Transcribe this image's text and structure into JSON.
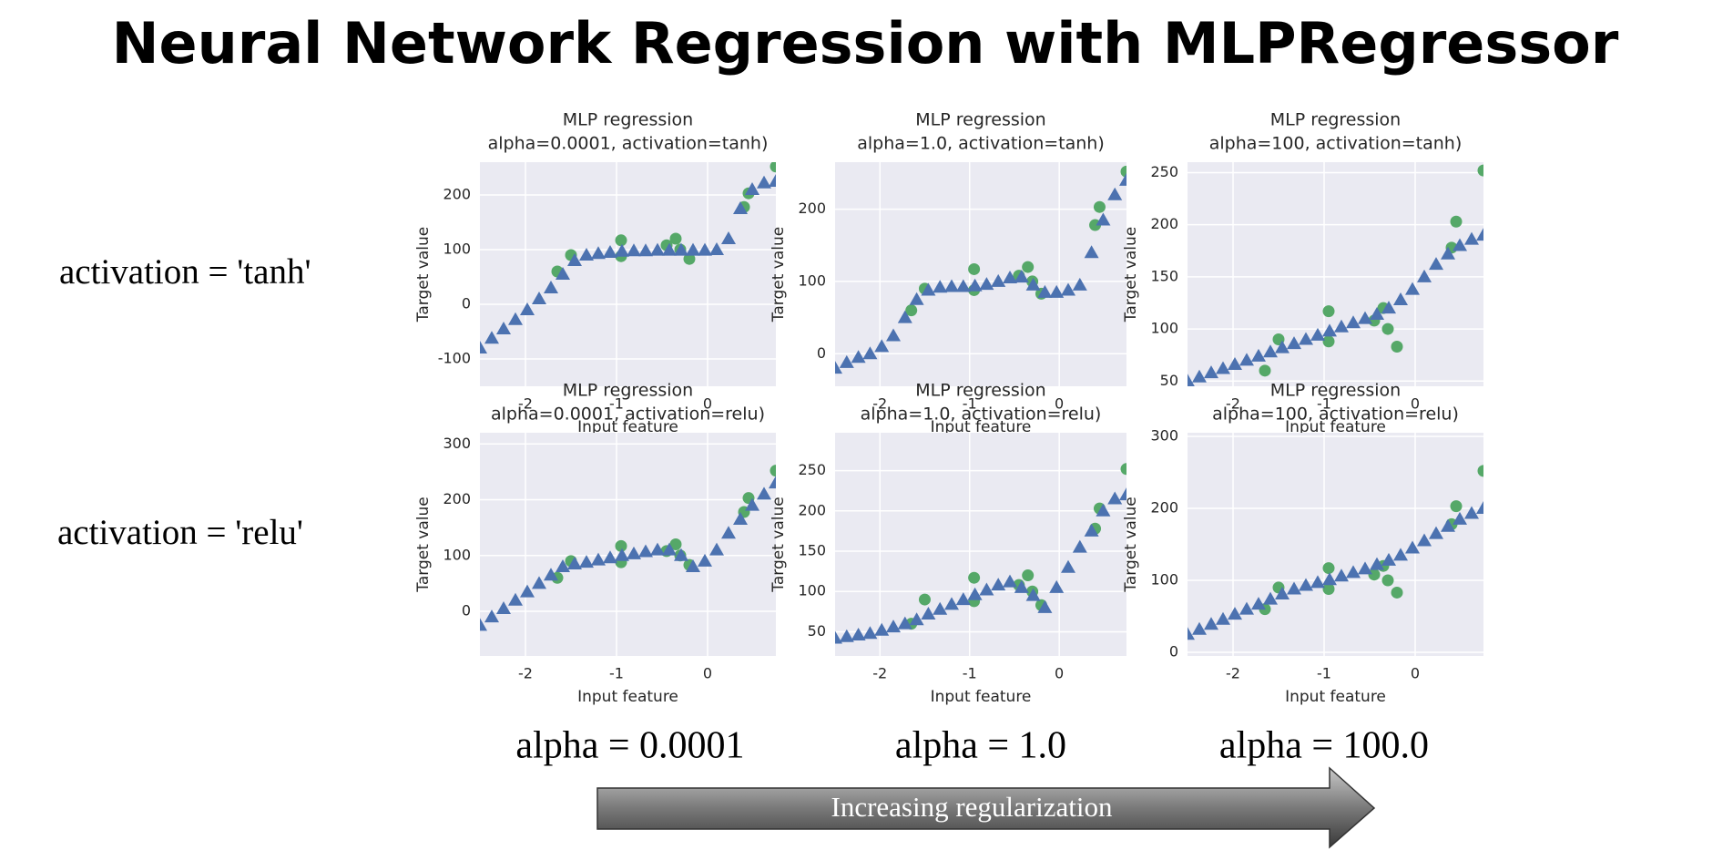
{
  "title": "Neural Network Regression with MLPRegressor",
  "row_labels": [
    "activation = 'tanh'",
    "activation = 'relu'"
  ],
  "col_labels": [
    "alpha = 0.0001",
    "alpha = 1.0",
    "alpha = 100.0"
  ],
  "arrow_label": "Increasing regularization",
  "chart_data": [
    {
      "type": "scatter",
      "title": "MLP regression",
      "subtitle": "alpha=0.0001, activation=tanh)",
      "x_label": "Input feature",
      "y_label": "Target value",
      "xlim": [
        -2.5,
        0.75
      ],
      "xticks": [
        -2,
        -1,
        0
      ],
      "ylim": [
        -150,
        260
      ],
      "yticks": [
        -100,
        0,
        100,
        200
      ],
      "grid": true,
      "series": [
        {
          "color": "#55a868",
          "marker": "circle",
          "x": [
            -1.65,
            -1.5,
            -0.95,
            -0.95,
            -0.45,
            -0.35,
            -0.3,
            -0.2,
            0.4,
            0.45,
            0.75
          ],
          "values": [
            60,
            90,
            117,
            88,
            108,
            120,
            100,
            83,
            178,
            203,
            252
          ]
        },
        {
          "color": "#4c72b0",
          "marker": "triangle",
          "x": [
            -2.5,
            -2.37,
            -2.24,
            -2.11,
            -1.98,
            -1.85,
            -1.72,
            -1.59,
            -1.46,
            -1.33,
            -1.2,
            -1.07,
            -0.94,
            -0.81,
            -0.68,
            -0.55,
            -0.42,
            -0.29,
            -0.16,
            -0.03,
            0.1,
            0.23,
            0.36,
            0.49,
            0.62,
            0.75
          ],
          "values": [
            -80,
            -62,
            -45,
            -28,
            -10,
            10,
            30,
            55,
            80,
            90,
            93,
            95,
            97,
            98,
            98,
            99,
            99,
            99,
            99,
            99,
            100,
            120,
            175,
            210,
            222,
            225
          ]
        }
      ]
    },
    {
      "type": "scatter",
      "title": "MLP regression",
      "subtitle": "alpha=1.0, activation=tanh)",
      "x_label": "Input feature",
      "y_label": "Target value",
      "xlim": [
        -2.5,
        0.75
      ],
      "xticks": [
        -2,
        -1,
        0
      ],
      "ylim": [
        -45,
        265
      ],
      "yticks": [
        0,
        100,
        200
      ],
      "grid": true,
      "series": [
        {
          "color": "#55a868",
          "marker": "circle",
          "x": [
            -1.65,
            -1.5,
            -0.95,
            -0.95,
            -0.45,
            -0.35,
            -0.3,
            -0.2,
            0.4,
            0.45,
            0.75
          ],
          "values": [
            60,
            90,
            117,
            88,
            108,
            120,
            100,
            83,
            178,
            203,
            252
          ]
        },
        {
          "color": "#4c72b0",
          "marker": "triangle",
          "x": [
            -2.5,
            -2.37,
            -2.24,
            -2.11,
            -1.98,
            -1.85,
            -1.72,
            -1.59,
            -1.46,
            -1.33,
            -1.2,
            -1.07,
            -0.94,
            -0.81,
            -0.68,
            -0.55,
            -0.42,
            -0.29,
            -0.16,
            -0.03,
            0.1,
            0.23,
            0.36,
            0.49,
            0.62,
            0.75
          ],
          "values": [
            -20,
            -12,
            -5,
            0,
            10,
            25,
            50,
            75,
            88,
            92,
            93,
            93,
            94,
            96,
            100,
            105,
            106,
            95,
            85,
            85,
            88,
            95,
            140,
            185,
            220,
            240
          ]
        }
      ]
    },
    {
      "type": "scatter",
      "title": "MLP regression",
      "subtitle": "alpha=100, activation=tanh)",
      "x_label": "Input feature",
      "y_label": "Target value",
      "xlim": [
        -2.5,
        0.75
      ],
      "xticks": [
        -2,
        -1,
        0
      ],
      "ylim": [
        45,
        260
      ],
      "yticks": [
        50,
        100,
        150,
        200,
        250
      ],
      "grid": true,
      "series": [
        {
          "color": "#55a868",
          "marker": "circle",
          "x": [
            -1.65,
            -1.5,
            -0.95,
            -0.95,
            -0.45,
            -0.35,
            -0.3,
            -0.2,
            0.4,
            0.45,
            0.75
          ],
          "values": [
            60,
            90,
            117,
            88,
            108,
            120,
            100,
            83,
            178,
            203,
            252
          ]
        },
        {
          "color": "#4c72b0",
          "marker": "triangle",
          "x": [
            -2.5,
            -2.37,
            -2.24,
            -2.11,
            -1.98,
            -1.85,
            -1.72,
            -1.59,
            -1.46,
            -1.33,
            -1.2,
            -1.07,
            -0.94,
            -0.81,
            -0.68,
            -0.55,
            -0.42,
            -0.29,
            -0.16,
            -0.03,
            0.1,
            0.23,
            0.36,
            0.49,
            0.62,
            0.75
          ],
          "values": [
            50,
            54,
            58,
            62,
            66,
            70,
            74,
            78,
            82,
            86,
            90,
            94,
            98,
            102,
            106,
            110,
            114,
            120,
            128,
            138,
            150,
            162,
            172,
            180,
            186,
            190
          ]
        }
      ]
    },
    {
      "type": "scatter",
      "title": "MLP regression",
      "subtitle": "alpha=0.0001, activation=relu)",
      "x_label": "Input feature",
      "y_label": "Target value",
      "xlim": [
        -2.5,
        0.75
      ],
      "xticks": [
        -2,
        -1,
        0
      ],
      "ylim": [
        -80,
        320
      ],
      "yticks": [
        0,
        100,
        200,
        300
      ],
      "grid": true,
      "series": [
        {
          "color": "#55a868",
          "marker": "circle",
          "x": [
            -1.65,
            -1.5,
            -0.95,
            -0.95,
            -0.45,
            -0.35,
            -0.3,
            -0.2,
            0.4,
            0.45,
            0.75
          ],
          "values": [
            60,
            90,
            117,
            88,
            108,
            120,
            100,
            83,
            178,
            203,
            252
          ]
        },
        {
          "color": "#4c72b0",
          "marker": "triangle",
          "x": [
            -2.5,
            -2.37,
            -2.24,
            -2.11,
            -1.98,
            -1.85,
            -1.72,
            -1.59,
            -1.46,
            -1.33,
            -1.2,
            -1.07,
            -0.94,
            -0.81,
            -0.68,
            -0.55,
            -0.42,
            -0.29,
            -0.16,
            -0.03,
            0.1,
            0.23,
            0.36,
            0.49,
            0.62,
            0.75
          ],
          "values": [
            -25,
            -10,
            5,
            20,
            35,
            50,
            65,
            80,
            85,
            88,
            92,
            96,
            100,
            103,
            107,
            110,
            110,
            100,
            80,
            90,
            110,
            140,
            165,
            190,
            210,
            230
          ]
        }
      ]
    },
    {
      "type": "scatter",
      "title": "MLP regression",
      "subtitle": "alpha=1.0, activation=relu)",
      "x_label": "Input feature",
      "y_label": "Target value",
      "xlim": [
        -2.5,
        0.75
      ],
      "xticks": [
        -2,
        -1,
        0
      ],
      "ylim": [
        20,
        297
      ],
      "yticks": [
        50,
        100,
        150,
        200,
        250
      ],
      "grid": true,
      "series": [
        {
          "color": "#55a868",
          "marker": "circle",
          "x": [
            -1.65,
            -1.5,
            -0.95,
            -0.95,
            -0.45,
            -0.35,
            -0.3,
            -0.2,
            0.4,
            0.45,
            0.75
          ],
          "values": [
            60,
            90,
            117,
            88,
            108,
            120,
            100,
            83,
            178,
            203,
            252
          ]
        },
        {
          "color": "#4c72b0",
          "marker": "triangle",
          "x": [
            -2.5,
            -2.37,
            -2.24,
            -2.11,
            -1.98,
            -1.85,
            -1.72,
            -1.59,
            -1.46,
            -1.33,
            -1.2,
            -1.07,
            -0.94,
            -0.81,
            -0.68,
            -0.55,
            -0.42,
            -0.29,
            -0.16,
            -0.03,
            0.1,
            0.23,
            0.36,
            0.49,
            0.62,
            0.75
          ],
          "values": [
            42,
            44,
            46,
            48,
            52,
            56,
            60,
            65,
            72,
            78,
            84,
            90,
            96,
            102,
            108,
            112,
            105,
            95,
            80,
            105,
            130,
            155,
            175,
            200,
            215,
            220
          ]
        }
      ]
    },
    {
      "type": "scatter",
      "title": "MLP regression",
      "subtitle": "alpha=100, activation=relu)",
      "x_label": "Input feature",
      "y_label": "Target value",
      "xlim": [
        -2.5,
        0.75
      ],
      "xticks": [
        -2,
        -1,
        0
      ],
      "ylim": [
        -5,
        305
      ],
      "yticks": [
        0,
        100,
        200,
        300
      ],
      "grid": true,
      "series": [
        {
          "color": "#55a868",
          "marker": "circle",
          "x": [
            -1.65,
            -1.5,
            -0.95,
            -0.95,
            -0.45,
            -0.35,
            -0.3,
            -0.2,
            0.4,
            0.45,
            0.75
          ],
          "values": [
            60,
            90,
            117,
            88,
            108,
            120,
            100,
            83,
            178,
            203,
            252
          ]
        },
        {
          "color": "#4c72b0",
          "marker": "triangle",
          "x": [
            -2.5,
            -2.37,
            -2.24,
            -2.11,
            -1.98,
            -1.85,
            -1.72,
            -1.59,
            -1.46,
            -1.33,
            -1.2,
            -1.07,
            -0.94,
            -0.81,
            -0.68,
            -0.55,
            -0.42,
            -0.29,
            -0.16,
            -0.03,
            0.1,
            0.23,
            0.36,
            0.49,
            0.62,
            0.75
          ],
          "values": [
            25,
            32,
            39,
            46,
            53,
            60,
            67,
            74,
            81,
            88,
            93,
            97,
            101,
            106,
            111,
            116,
            122,
            128,
            135,
            145,
            155,
            165,
            175,
            185,
            193,
            200
          ]
        }
      ]
    }
  ]
}
